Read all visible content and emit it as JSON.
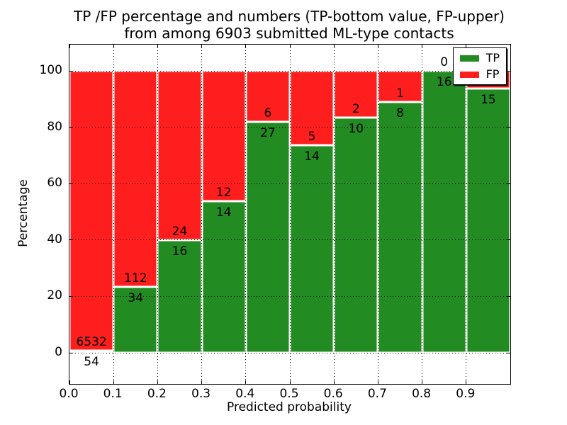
{
  "title": {
    "line1": "TP /FP percentage and numbers (TP-bottom value, FP-upper)",
    "line2": "from among 6903 submitted ML-type contacts"
  },
  "chart_data": {
    "type": "bar",
    "stacked": true,
    "normalized_to_percent": true,
    "title": "TP /FP percentage and numbers (TP-bottom value, FP-upper)\nfrom among 6903 submitted ML-type contacts",
    "xlabel": "Predicted probability",
    "ylabel": "Percentage",
    "bin_edges": [
      0.0,
      0.1,
      0.2,
      0.3,
      0.4,
      0.5,
      0.6,
      0.7,
      0.8,
      0.9,
      1.0
    ],
    "x_ticks": [
      "0.0",
      "0.1",
      "0.2",
      "0.3",
      "0.4",
      "0.5",
      "0.6",
      "0.7",
      "0.8",
      "0.9"
    ],
    "y_ticks": [
      0,
      20,
      40,
      60,
      80,
      100
    ],
    "xlim": [
      0.0,
      1.0
    ],
    "ylim": [
      -11,
      109
    ],
    "grid": "dotted black, on top of bars",
    "bar_edge_color": "#ffffff",
    "series": [
      {
        "name": "TP",
        "color": "#228b22",
        "position": "bottom",
        "values": [
          54,
          34,
          16,
          14,
          27,
          14,
          10,
          8,
          16,
          15
        ]
      },
      {
        "name": "FP",
        "color": "#ff1e1e",
        "position": "top",
        "values": [
          6532,
          112,
          24,
          12,
          6,
          5,
          2,
          1,
          0,
          1
        ]
      }
    ],
    "tp_percent_per_bin": [
      0.82,
      23.29,
      40.0,
      53.85,
      81.82,
      73.68,
      83.33,
      88.89,
      100.0,
      93.75
    ],
    "total_contacts": 6903,
    "legend": {
      "position": "upper-right",
      "entries": [
        "TP",
        "FP"
      ]
    }
  }
}
